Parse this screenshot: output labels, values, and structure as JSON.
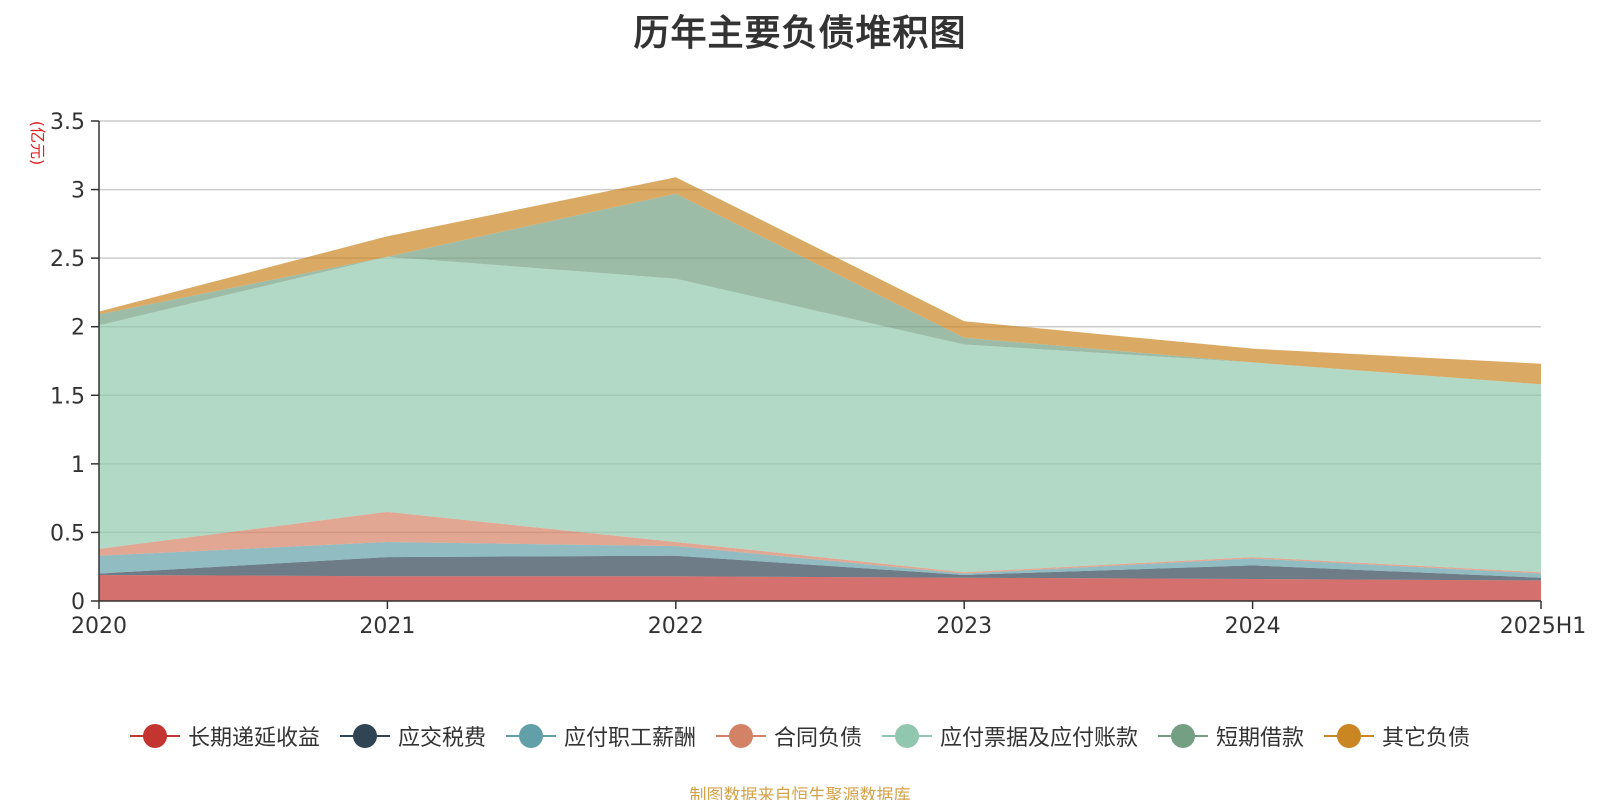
{
  "chart_data": {
    "type": "area",
    "stacked": true,
    "title": "历年主要负债堆积图",
    "ylabel": "(亿元)",
    "xlabel": "",
    "categories": [
      "2020",
      "2021",
      "2022",
      "2023",
      "2024",
      "2025H1"
    ],
    "ylim": [
      0,
      3.5
    ],
    "yticks": [
      "0",
      "0.5",
      "1",
      "1.5",
      "2",
      "2.5",
      "3",
      "3.5"
    ],
    "grid": true,
    "legend_position": "bottom",
    "series": [
      {
        "name": "长期递延收益",
        "color": "#c23531",
        "values": [
          0.19,
          0.18,
          0.18,
          0.17,
          0.16,
          0.15
        ]
      },
      {
        "name": "应交税费",
        "color": "#2f4554",
        "values": [
          0.01,
          0.14,
          0.15,
          0.02,
          0.1,
          0.02
        ]
      },
      {
        "name": "应付职工薪酬",
        "color": "#61a0a8",
        "values": [
          0.13,
          0.11,
          0.07,
          0.01,
          0.05,
          0.03
        ]
      },
      {
        "name": "合同负债",
        "color": "#d48265",
        "values": [
          0.05,
          0.22,
          0.03,
          0.01,
          0.01,
          0.01
        ]
      },
      {
        "name": "应付票据及应付账款",
        "color": "#91c7ae",
        "values": [
          1.63,
          1.86,
          1.92,
          1.66,
          1.42,
          1.37
        ]
      },
      {
        "name": "短期借款",
        "color": "#749f83",
        "values": [
          0.08,
          0.0,
          0.62,
          0.05,
          0.0,
          0.0
        ]
      },
      {
        "name": "其它负债",
        "color": "#ca8622",
        "values": [
          0.02,
          0.15,
          0.12,
          0.12,
          0.1,
          0.15
        ]
      }
    ]
  },
  "footer": {
    "source": "制图数据来自恒生聚源数据库"
  }
}
